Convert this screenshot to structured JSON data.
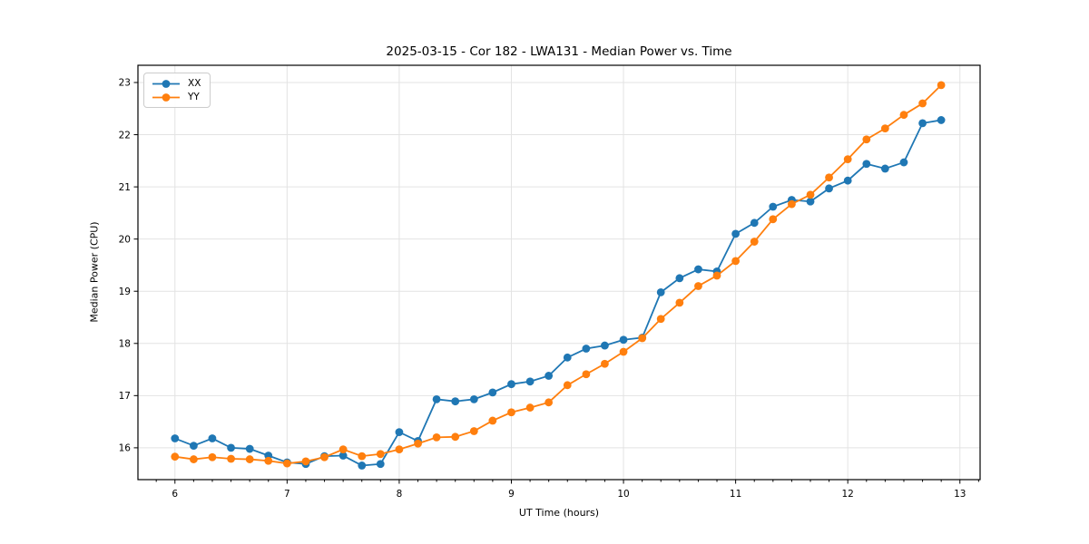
{
  "chart_data": {
    "type": "line",
    "title": "2025-03-15 - Cor 182 - LWA131 - Median Power vs. Time",
    "xlabel": "UT Time (hours)",
    "ylabel": "Median Power (CPU)",
    "xlim": [
      5.67,
      13.18
    ],
    "ylim": [
      15.39,
      23.33
    ],
    "xticks": [
      6,
      7,
      8,
      9,
      10,
      11,
      12,
      13
    ],
    "yticks": [
      16,
      17,
      18,
      19,
      20,
      21,
      22,
      23
    ],
    "x_minor_step": 0.166667,
    "grid": true,
    "grid_color": "#e3e3e3",
    "legend_position": "upper-left",
    "x": [
      6.0,
      6.167,
      6.333,
      6.5,
      6.667,
      6.833,
      7.0,
      7.167,
      7.333,
      7.5,
      7.667,
      7.833,
      8.0,
      8.167,
      8.333,
      8.5,
      8.667,
      8.833,
      9.0,
      9.167,
      9.333,
      9.5,
      9.667,
      9.833,
      10.0,
      10.167,
      10.333,
      10.5,
      10.667,
      10.833,
      11.0,
      11.167,
      11.333,
      11.5,
      11.667,
      11.833,
      12.0,
      12.167,
      12.333,
      12.5,
      12.667,
      12.833
    ],
    "series": [
      {
        "name": "XX",
        "color": "#1f77b4",
        "values": [
          16.18,
          16.04,
          16.18,
          16.0,
          15.98,
          15.85,
          15.72,
          15.69,
          15.84,
          15.85,
          15.66,
          15.69,
          16.3,
          16.13,
          16.93,
          16.89,
          16.93,
          17.06,
          17.22,
          17.27,
          17.38,
          17.73,
          17.9,
          17.96,
          18.07,
          18.11,
          18.98,
          19.25,
          19.42,
          19.38,
          20.1,
          20.31,
          20.62,
          20.75,
          20.72,
          20.97,
          21.12,
          21.44,
          21.35,
          21.47,
          22.22,
          22.28
        ]
      },
      {
        "name": "YY",
        "color": "#ff7f0e",
        "values": [
          15.83,
          15.78,
          15.82,
          15.79,
          15.78,
          15.75,
          15.7,
          15.74,
          15.82,
          15.97,
          15.84,
          15.88,
          15.97,
          16.08,
          16.2,
          16.21,
          16.32,
          16.52,
          16.68,
          16.77,
          16.87,
          17.2,
          17.41,
          17.61,
          17.84,
          18.1,
          18.47,
          18.78,
          19.1,
          19.3,
          19.58,
          19.95,
          20.38,
          20.67,
          20.85,
          21.18,
          21.53,
          21.91,
          22.12,
          22.38,
          22.6,
          22.95
        ]
      }
    ]
  }
}
